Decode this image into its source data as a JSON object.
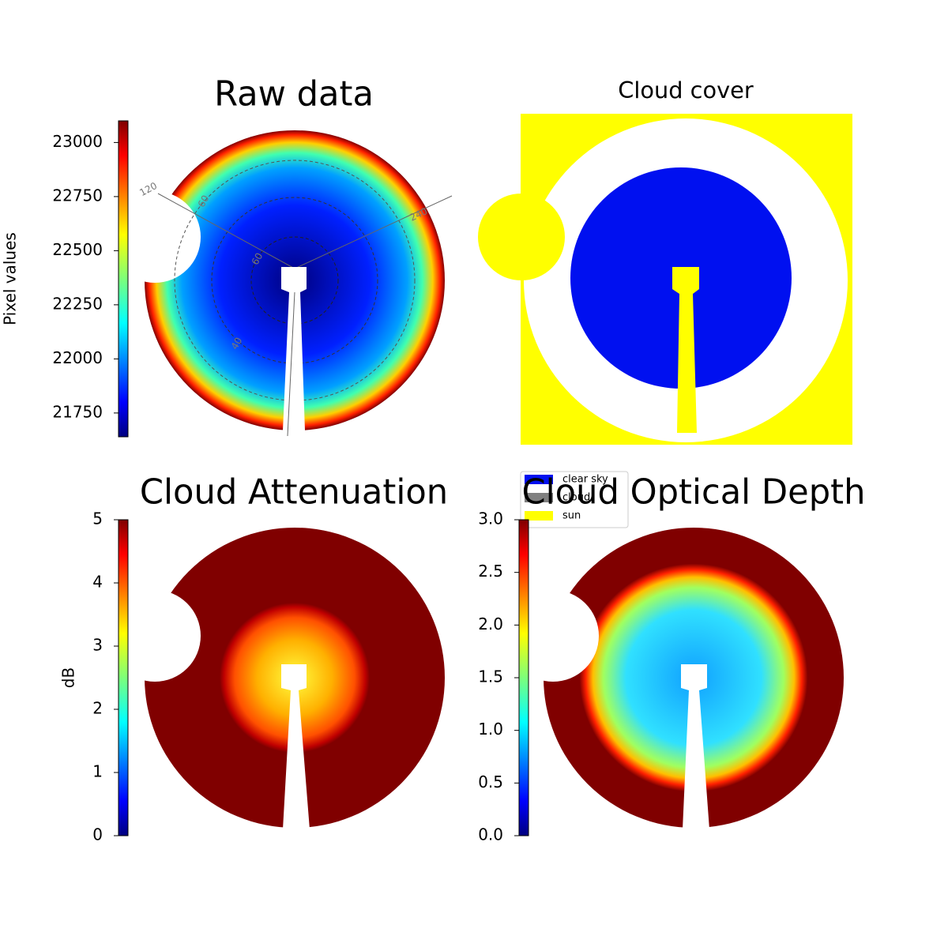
{
  "chart_data": [
    {
      "type": "image",
      "title": "Raw data",
      "colormap": "jet",
      "annotations": [
        "120",
        "60",
        "240",
        "60",
        "40"
      ],
      "colorbar": {
        "label": "Pixel values",
        "lim": [
          21640,
          23100
        ],
        "ticks": [
          21750,
          22000,
          22250,
          22500,
          22750,
          23000
        ]
      }
    },
    {
      "type": "image",
      "title": "Cloud cover",
      "series": [
        {
          "name": "clear sky",
          "color": "#0010f0"
        },
        {
          "name": "cloud",
          "color": "#808080"
        },
        {
          "name": "sun",
          "color": "#ffff00"
        }
      ]
    },
    {
      "type": "image",
      "title": "Cloud Attenuation",
      "colormap": "jet",
      "colorbar": {
        "label": "dB",
        "lim": [
          0,
          5
        ],
        "ticks": [
          0,
          1,
          2,
          3,
          4,
          5
        ]
      }
    },
    {
      "type": "image",
      "title": "Cloud Optical Depth",
      "colormap": "jet",
      "colorbar": {
        "lim": [
          0,
          3
        ],
        "ticks": [
          {
            "value": 0,
            "label": "0.0"
          },
          0.5,
          {
            "value": 1,
            "label": "1.0"
          },
          1.5,
          {
            "value": 2,
            "label": "2.0"
          },
          2.5,
          {
            "value": 3,
            "label": "3.0"
          }
        ]
      }
    }
  ]
}
